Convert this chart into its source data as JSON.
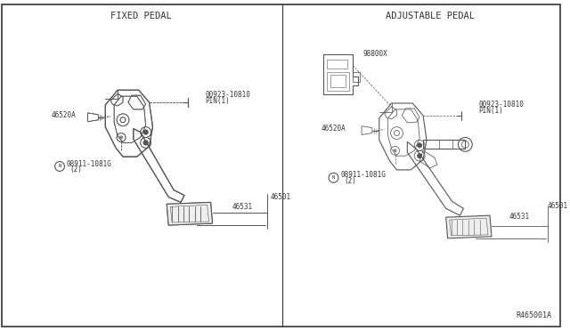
{
  "background_color": "#f5f5f0",
  "line_color": "#555555",
  "text_color": "#333333",
  "title_left": "FIXED PEDAL",
  "title_right": "ADJUSTABLE PEDAL",
  "ref_code": "R465001A",
  "font_size_title": 7.5,
  "font_size_label": 6,
  "font_size_ref": 6
}
